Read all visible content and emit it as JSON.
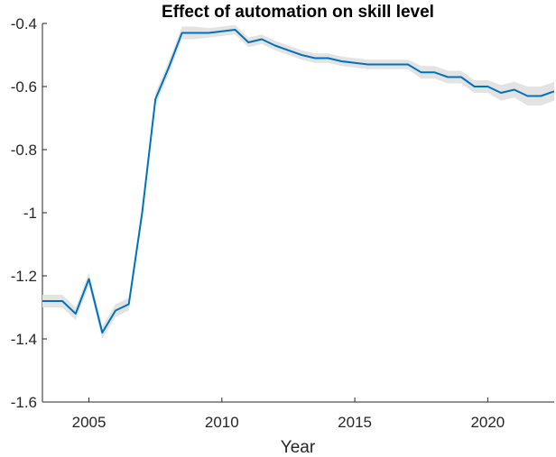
{
  "chart_data": {
    "type": "line",
    "title": "Effect of automation on skill level",
    "xlabel": "Year",
    "ylabel": "",
    "xlim": [
      2003.25,
      2022.5
    ],
    "ylim": [
      -1.6,
      -0.4
    ],
    "xticks": [
      2005,
      2010,
      2015,
      2020
    ],
    "yticks": [
      -1.6,
      -1.4,
      -1.2,
      -1,
      -0.8,
      -0.6,
      -0.4
    ],
    "xtick_labels": [
      "2005",
      "2010",
      "2015",
      "2020"
    ],
    "ytick_labels": [
      "-1.6",
      "-1.4",
      "-1.2",
      "-1",
      "-0.8",
      "-0.6",
      "-0.4"
    ],
    "grid": false,
    "line_color": "#0072BD",
    "band_color": "#E3E3E3",
    "series": [
      {
        "x": [
          2003.25,
          2004.0,
          2004.5,
          2005.0,
          2005.5,
          2006.0,
          2006.5,
          2007.0,
          2007.5,
          2008.0,
          2008.5,
          2009.0,
          2009.5,
          2010.0,
          2010.5,
          2011.0,
          2011.5,
          2012.0,
          2012.5,
          2013.0,
          2013.5,
          2014.0,
          2014.5,
          2015.0,
          2015.5,
          2016.0,
          2016.5,
          2017.0,
          2017.5,
          2018.0,
          2018.5,
          2019.0,
          2019.5,
          2020.0,
          2020.5,
          2021.0,
          2021.5,
          2022.0,
          2022.5
        ],
        "values": [
          -1.28,
          -1.28,
          -1.32,
          -1.21,
          -1.38,
          -1.31,
          -1.29,
          -1.0,
          -0.64,
          -0.54,
          -0.43,
          -0.43,
          -0.43,
          -0.425,
          -0.42,
          -0.46,
          -0.45,
          -0.47,
          -0.485,
          -0.5,
          -0.51,
          -0.51,
          -0.52,
          -0.525,
          -0.53,
          -0.53,
          -0.53,
          -0.53,
          -0.555,
          -0.555,
          -0.57,
          -0.57,
          -0.6,
          -0.6,
          -0.62,
          -0.61,
          -0.63,
          -0.63,
          -0.615
        ],
        "lower": [
          -1.3,
          -1.3,
          -1.34,
          -1.23,
          -1.4,
          -1.33,
          -1.31,
          -1.02,
          -0.66,
          -0.56,
          -0.45,
          -0.45,
          -0.445,
          -0.44,
          -0.435,
          -0.475,
          -0.465,
          -0.485,
          -0.5,
          -0.515,
          -0.525,
          -0.525,
          -0.535,
          -0.54,
          -0.545,
          -0.545,
          -0.545,
          -0.545,
          -0.575,
          -0.575,
          -0.59,
          -0.59,
          -0.62,
          -0.62,
          -0.645,
          -0.635,
          -0.66,
          -0.66,
          -0.645
        ],
        "upper": [
          -1.26,
          -1.26,
          -1.3,
          -1.19,
          -1.36,
          -1.29,
          -1.27,
          -0.98,
          -0.62,
          -0.52,
          -0.41,
          -0.41,
          -0.415,
          -0.41,
          -0.405,
          -0.445,
          -0.435,
          -0.455,
          -0.47,
          -0.485,
          -0.495,
          -0.495,
          -0.505,
          -0.51,
          -0.515,
          -0.515,
          -0.515,
          -0.515,
          -0.535,
          -0.535,
          -0.55,
          -0.55,
          -0.58,
          -0.58,
          -0.595,
          -0.585,
          -0.6,
          -0.6,
          -0.585
        ]
      }
    ]
  }
}
